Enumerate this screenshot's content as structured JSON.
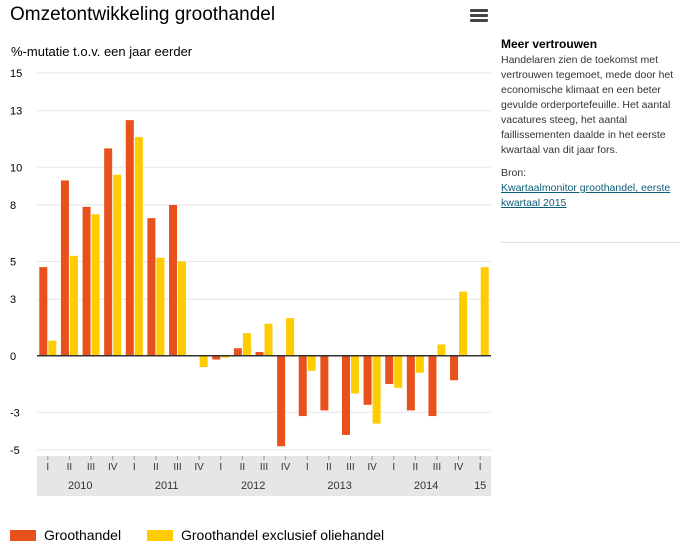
{
  "header": {
    "title": "Omzetontwikkeling groothandel",
    "menu_icon": "hamburger-menu-icon"
  },
  "side_panel": {
    "title": "Meer vertrouwen",
    "body": "Handelaren zien de toekomst met vertrouwen tegemoet, mede door het economische klimaat en een beter gevulde orderportefeuille. Het aantal vacatures steeg, het aantal faillissementen daalde in het eerste kwartaal van dit jaar fors.",
    "source_label": "Bron:",
    "source_link": "Kwartaalmonitor groothandel, eerste kwartaal 2015"
  },
  "colors": {
    "series1": "#e8501c",
    "series2": "#ffcc00",
    "axis_band": "#e6e6e6",
    "grid": "#e6e6e6",
    "zero_line": "#333333"
  },
  "chart_data": {
    "type": "bar",
    "title": "Omzetontwikkeling groothandel",
    "ylabel": "%-mutatie t.o.v. een jaar eerder",
    "xlabel": "",
    "ylim": [
      -5,
      15
    ],
    "yticks": [
      -5,
      -3,
      0,
      3,
      5,
      8,
      10,
      13,
      15
    ],
    "grid": true,
    "legend_position": "bottom",
    "categories": [
      "I",
      "II",
      "III",
      "IV",
      "I",
      "II",
      "III",
      "IV",
      "I",
      "II",
      "III",
      "IV",
      "I",
      "II",
      "III",
      "IV",
      "I",
      "II",
      "III",
      "IV",
      "I"
    ],
    "year_labels": [
      {
        "label": "2010",
        "start": 0,
        "end": 3
      },
      {
        "label": "2011",
        "start": 4,
        "end": 7
      },
      {
        "label": "2012",
        "start": 8,
        "end": 11
      },
      {
        "label": "2013",
        "start": 12,
        "end": 15
      },
      {
        "label": "2014",
        "start": 16,
        "end": 19
      },
      {
        "label": "15",
        "start": 20,
        "end": 20
      }
    ],
    "series": [
      {
        "name": "Groothandel",
        "values": [
          4.7,
          9.3,
          7.9,
          11.0,
          12.5,
          7.3,
          8.0,
          0.0,
          -0.2,
          0.4,
          0.2,
          -4.8,
          -3.2,
          -2.9,
          -4.2,
          -2.6,
          -1.5,
          -2.9,
          -3.2,
          -1.3,
          0.0
        ]
      },
      {
        "name": "Groothandel exclusief oliehandel",
        "values": [
          0.8,
          5.3,
          7.5,
          9.6,
          11.6,
          5.2,
          5.0,
          -0.6,
          -0.1,
          1.2,
          1.7,
          2.0,
          -0.8,
          0.0,
          -2.0,
          -3.6,
          -1.7,
          -0.9,
          0.6,
          3.4,
          4.7
        ]
      }
    ]
  }
}
